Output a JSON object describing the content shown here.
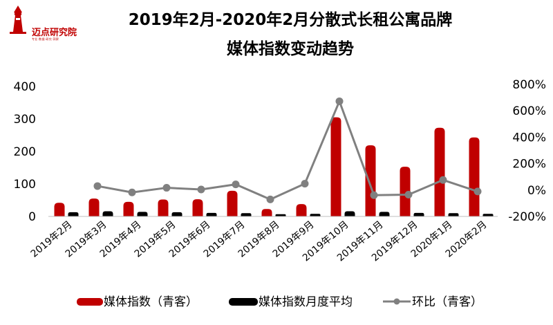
{
  "logo": {
    "name": "迈点研究院",
    "tagline": "专业·数据·研究·洞察"
  },
  "title": {
    "line1": "2019年2月-2020年2月分散式长租公寓品牌",
    "line2": "媒体指数变动趋势"
  },
  "colors": {
    "index": "#c00000",
    "avg": "#000000",
    "ratio": "#808080"
  },
  "chart_data": {
    "type": "bar+line",
    "categories": [
      "2019年2月",
      "2019年3月",
      "2019年4月",
      "2019年5月",
      "2019年6月",
      "2019年7月",
      "2019年8月",
      "2019年9月",
      "2019年10月",
      "2019年11月",
      "2019年12月",
      "2020年1月",
      "2020年2月"
    ],
    "series": [
      {
        "name": "媒体指数（青客）",
        "type": "bar",
        "axis": "left",
        "values": [
          42,
          55,
          45,
          52,
          53,
          79,
          23,
          38,
          305,
          219,
          153,
          273,
          243
        ]
      },
      {
        "name": "媒体指数月度平均",
        "type": "bar",
        "axis": "left",
        "values": [
          13,
          16,
          14,
          13,
          11,
          10,
          7,
          8,
          16,
          14,
          11,
          10,
          8
        ]
      },
      {
        "name": "环比（青客）",
        "type": "line",
        "axis": "right",
        "values": [
          null,
          30,
          -18,
          17,
          4,
          43,
          -71,
          48,
          672,
          -39,
          -35,
          76,
          -11
        ]
      }
    ],
    "y_left": {
      "min": 0,
      "max": 400,
      "ticks": [
        "0",
        "100",
        "200",
        "300",
        "400"
      ]
    },
    "y_right": {
      "min": -200,
      "max": 800,
      "ticks": [
        "-200%",
        "0%",
        "200%",
        "400%",
        "600%",
        "800%"
      ]
    }
  },
  "legend": [
    {
      "label": "媒体指数（青客）",
      "icon": "bar-swatch-icon"
    },
    {
      "label": "媒体指数月度平均",
      "icon": "bar-swatch-icon"
    },
    {
      "label": "环比（青客）",
      "icon": "line-marker-icon"
    }
  ]
}
